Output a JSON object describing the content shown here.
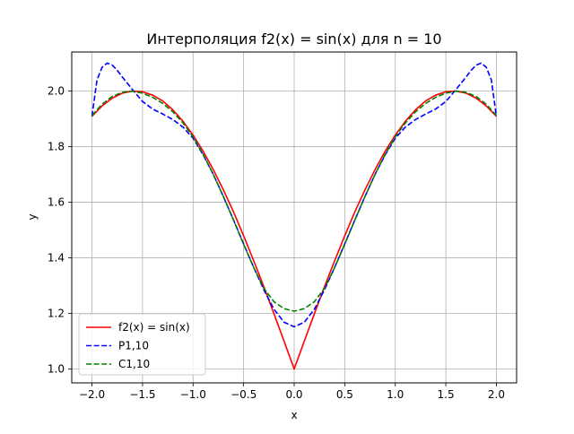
{
  "chart_data": {
    "type": "line",
    "title": "Интерполяция f2(x) = sin(x) для n = 10",
    "xlabel": "x",
    "ylabel": "y",
    "xlim": [
      -2.2,
      2.2
    ],
    "ylim": [
      0.95,
      2.14
    ],
    "xticks": [
      -2.0,
      -1.5,
      -1.0,
      -0.5,
      0.0,
      0.5,
      1.0,
      1.5,
      2.0
    ],
    "xtick_labels": [
      "−2.0",
      "−1.5",
      "−1.0",
      "−0.5",
      "0.0",
      "0.5",
      "1.0",
      "1.5",
      "2.0"
    ],
    "yticks": [
      1.0,
      1.2,
      1.4,
      1.6,
      1.8,
      2.0
    ],
    "ytick_labels": [
      "1.0",
      "1.2",
      "1.4",
      "1.6",
      "1.8",
      "2.0"
    ],
    "grid": true,
    "legend_position": "lower-left",
    "series": [
      {
        "name": "f2(x) = sin(x)",
        "color": "#ff0000",
        "style": "solid",
        "x": [
          -2.0,
          -1.9,
          -1.8,
          -1.7,
          -1.6,
          -1.5,
          -1.4,
          -1.3,
          -1.2,
          -1.1,
          -1.0,
          -0.9,
          -0.8,
          -0.7,
          -0.6,
          -0.5,
          -0.4,
          -0.3,
          -0.2,
          -0.1,
          0.0,
          0.1,
          0.2,
          0.3,
          0.4,
          0.5,
          0.6,
          0.7,
          0.8,
          0.9,
          1.0,
          1.1,
          1.2,
          1.3,
          1.4,
          1.5,
          1.6,
          1.7,
          1.8,
          1.9,
          2.0
        ],
        "y": [
          1.909,
          1.946,
          1.974,
          1.992,
          1.9996,
          1.997,
          1.985,
          1.964,
          1.932,
          1.891,
          1.841,
          1.783,
          1.717,
          1.644,
          1.565,
          1.479,
          1.389,
          1.296,
          1.199,
          1.1,
          1.0,
          1.1,
          1.199,
          1.296,
          1.389,
          1.479,
          1.565,
          1.644,
          1.717,
          1.783,
          1.841,
          1.891,
          1.932,
          1.964,
          1.985,
          1.997,
          1.9996,
          1.992,
          1.974,
          1.946,
          1.909
        ]
      },
      {
        "name": "P1,10",
        "color": "#0000ff",
        "style": "dashed",
        "x": [
          -2.0,
          -1.95,
          -1.9,
          -1.85,
          -1.8,
          -1.75,
          -1.7,
          -1.6,
          -1.5,
          -1.4,
          -1.3,
          -1.2,
          -1.1,
          -1.0,
          -0.9,
          -0.8,
          -0.7,
          -0.6,
          -0.5,
          -0.4,
          -0.3,
          -0.2,
          -0.1,
          0.0,
          0.1,
          0.2,
          0.3,
          0.4,
          0.5,
          0.6,
          0.7,
          0.8,
          0.9,
          1.0,
          1.1,
          1.2,
          1.3,
          1.4,
          1.5,
          1.6,
          1.7,
          1.75,
          1.8,
          1.85,
          1.9,
          1.95,
          2.0
        ],
        "y": [
          1.909,
          2.04,
          2.085,
          2.1,
          2.093,
          2.074,
          2.05,
          2.005,
          1.962,
          1.935,
          1.917,
          1.897,
          1.87,
          1.83,
          1.77,
          1.7,
          1.62,
          1.536,
          1.45,
          1.365,
          1.285,
          1.215,
          1.168,
          1.152,
          1.168,
          1.215,
          1.285,
          1.365,
          1.45,
          1.536,
          1.62,
          1.7,
          1.77,
          1.83,
          1.87,
          1.897,
          1.917,
          1.935,
          1.962,
          2.005,
          2.05,
          2.074,
          2.093,
          2.1,
          2.085,
          2.04,
          1.909
        ]
      },
      {
        "name": "C1,10",
        "color": "#008000",
        "style": "dashed",
        "x": [
          -2.0,
          -1.9,
          -1.8,
          -1.7,
          -1.6,
          -1.5,
          -1.4,
          -1.3,
          -1.2,
          -1.1,
          -1.0,
          -0.9,
          -0.8,
          -0.7,
          -0.6,
          -0.5,
          -0.4,
          -0.3,
          -0.2,
          -0.1,
          0.0,
          0.1,
          0.2,
          0.3,
          0.4,
          0.5,
          0.6,
          0.7,
          0.8,
          0.9,
          1.0,
          1.1,
          1.2,
          1.3,
          1.4,
          1.5,
          1.6,
          1.7,
          1.8,
          1.9,
          2.0
        ],
        "y": [
          1.912,
          1.952,
          1.98,
          1.995,
          1.999,
          1.992,
          1.977,
          1.955,
          1.925,
          1.885,
          1.835,
          1.772,
          1.7,
          1.62,
          1.535,
          1.448,
          1.365,
          1.29,
          1.242,
          1.217,
          1.208,
          1.217,
          1.242,
          1.29,
          1.365,
          1.448,
          1.535,
          1.62,
          1.7,
          1.772,
          1.835,
          1.885,
          1.925,
          1.955,
          1.977,
          1.992,
          1.999,
          1.995,
          1.98,
          1.952,
          1.912
        ]
      }
    ]
  }
}
